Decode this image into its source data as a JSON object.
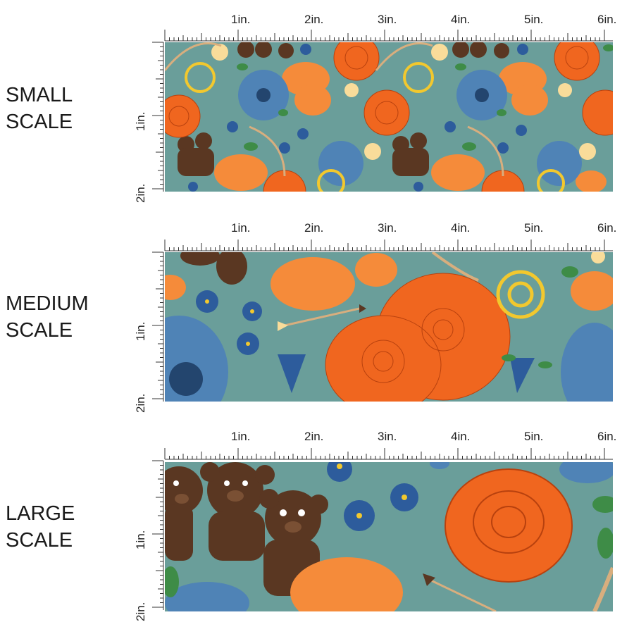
{
  "page": {
    "background": "#ffffff"
  },
  "scales": [
    {
      "id": "small",
      "label_line1": "SMALL",
      "label_line2": "SCALE"
    },
    {
      "id": "medium",
      "label_line1": "MEDIUM",
      "label_line2": "SCALE"
    },
    {
      "id": "large",
      "label_line1": "LARGE",
      "label_line2": "SCALE"
    }
  ],
  "ruler": {
    "top_labels": [
      "1in.",
      "2in.",
      "3in.",
      "4in.",
      "5in.",
      "6in."
    ],
    "side_labels": [
      "1in.",
      "2in."
    ]
  },
  "fabric": {
    "background_color": "#6a9e9a",
    "motifs": [
      "brown-bear",
      "orange-rose",
      "orange-carnation",
      "blue-daisy",
      "forget-me-not",
      "celtic-knot",
      "arrow",
      "bow",
      "cream-lily"
    ],
    "colors": {
      "rose": "#f0661f",
      "rose_line": "#b8410e",
      "carnation": "#f58b3a",
      "bear": "#5a3722",
      "daisy": "#4f83b6",
      "forget_me_not": "#2d5c9c",
      "knot": "#f2c82e",
      "leaf": "#3e8c47",
      "lily": "#f9dc9a"
    }
  }
}
